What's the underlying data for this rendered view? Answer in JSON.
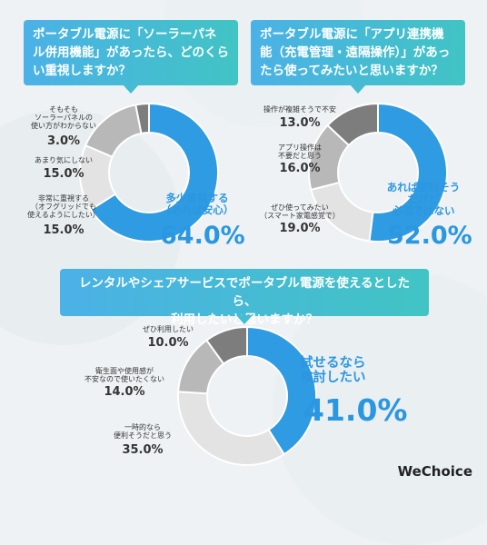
{
  "colors": {
    "blue": "#2f9be3",
    "gray_dark": "#8a8a8a",
    "gray_light": "#d6d6d6",
    "gray_mid": "#b5b5b5",
    "white": "#ffffff"
  },
  "panel1": {
    "title_l1": "ポータブル電源に「ソーラーパネ",
    "title_l2": "ル併用機能」があったら、どのくら",
    "title_l3": "い重視しますか？",
    "labels": {
      "s1_l1": "そもそも",
      "s1_l2": "ソーラーパネルの",
      "s1_l3": "使い方がわからない",
      "s1_pct": "3.0%",
      "s2_l1": "あまり気にしない",
      "s2_pct": "15.0%",
      "s3_l1": "非常に重視する",
      "s3_l2": "（オフグリッドでも",
      "s3_l3": "使えるようにしたい）",
      "s3_pct": "15.0%",
      "s4_l1": "多少重視する",
      "s4_l2": "（あれば安心）",
      "s4_pct": "64.0%"
    }
  },
  "panel2": {
    "title_l1": "ポータブル電源に「アプリ連携機",
    "title_l2": "能（充電管理・遠隔操作）」があっ",
    "title_l3": "たら使ってみたいと思いますか？",
    "labels": {
      "s1_l1": "操作が複雑そうで不安",
      "s1_pct": "13.0%",
      "s2_l1": "アプリ操作は",
      "s2_l2": "不要だと思う",
      "s2_pct": "16.0%",
      "s3_l1": "ぜひ使ってみたい",
      "s3_l2": "（スマート家電感覚で）",
      "s3_pct": "19.0%",
      "s4_l1": "あれば便利そう",
      "s4_l2": "だけど",
      "s4_l3": "必須ではない",
      "s4_pct": "52.0%"
    }
  },
  "panel3": {
    "title_l1": "レンタルやシェアサービスでポータブル電源を使えるとしたら、",
    "title_l2": "利用したいと思いますか？",
    "labels": {
      "s1_l1": "ぜひ利用したい",
      "s1_pct": "10.0%",
      "s2_l1": "衛生面や使用感が",
      "s2_l2": "不安なので使いたくない",
      "s2_pct": "14.0%",
      "s3_l1": "一時的なら",
      "s3_l2": "便利そうだと思う",
      "s3_pct": "35.0%",
      "s4_l1": "試せるなら",
      "s4_l2": "検討したい",
      "s4_pct": "41.0%"
    }
  },
  "logo": "WeChoice",
  "chart_data": [
    {
      "type": "pie",
      "title": "ポータブル電源に「ソーラーパネル併用機能」があったら、どのくらい重視しますか？",
      "categories": [
        "多少重視する（あれば安心）",
        "非常に重視する（オフグリッドでも使えるようにしたい）",
        "あまり気にしない",
        "そもそもソーラーパネルの使い方がわからない"
      ],
      "values": [
        64.0,
        15.0,
        15.0,
        3.0
      ],
      "unit": "%",
      "colors": [
        "#2f9be3",
        "#e3e3e3",
        "#b8b8b8",
        "#7d7d7d"
      ]
    },
    {
      "type": "pie",
      "title": "ポータブル電源に「アプリ連携機能（充電管理・遠隔操作）」があったら使ってみたいと思いますか？",
      "categories": [
        "あれば便利そうだけど必須ではない",
        "ぜひ使ってみたい（スマート家電感覚で）",
        "アプリ操作は不要だと思う",
        "操作が複雑そうで不安"
      ],
      "values": [
        52.0,
        19.0,
        16.0,
        13.0
      ],
      "unit": "%",
      "colors": [
        "#2f9be3",
        "#e3e3e3",
        "#b8b8b8",
        "#7d7d7d"
      ]
    },
    {
      "type": "pie",
      "title": "レンタルやシェアサービスでポータブル電源を使えるとしたら、利用したいと思いますか？",
      "categories": [
        "試せるなら検討したい",
        "一時的なら便利そうだと思う",
        "衛生面や使用感が不安なので使いたくない",
        "ぜひ利用したい"
      ],
      "values": [
        41.0,
        35.0,
        14.0,
        10.0
      ],
      "unit": "%",
      "colors": [
        "#2f9be3",
        "#e3e3e3",
        "#b8b8b8",
        "#7d7d7d"
      ]
    }
  ]
}
